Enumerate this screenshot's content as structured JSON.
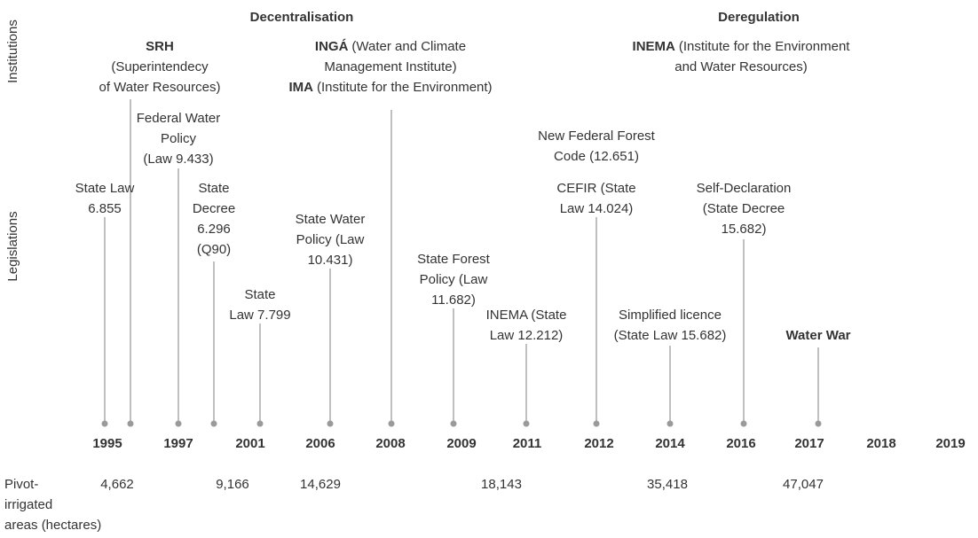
{
  "axis_labels": {
    "institutions": "Institutions",
    "legislations": "Legislations"
  },
  "periods": [
    "Decentralisation",
    "Deregulation"
  ],
  "institutions": [
    {
      "lines": [
        {
          "bold": "SRH"
        },
        {
          "text": "(Superintendecy"
        },
        {
          "text": "of Water Resources)"
        }
      ]
    },
    {
      "lines": [
        {
          "bold": "INGÁ",
          "text": "(Water and Climate"
        },
        {
          "text": "Management Institute)"
        },
        {
          "bold": "IMA",
          "text": "(Institute for the Environment)"
        }
      ]
    },
    {
      "lines": [
        {
          "bold": "INEMA",
          "text": "(Institute for the Environment"
        },
        {
          "text": "and Water Resources)"
        }
      ]
    }
  ],
  "legislations": [
    {
      "lines": [
        {
          "text": "State Law"
        },
        {
          "text": "6.855"
        }
      ]
    },
    {
      "lines": [
        {
          "text": "Federal Water"
        },
        {
          "text": "Policy"
        },
        {
          "text": "(Law 9.433)"
        }
      ]
    },
    {
      "lines": [
        {
          "text": "State"
        },
        {
          "text": "Decree"
        },
        {
          "text": "6.296"
        },
        {
          "text": "(Q90)"
        }
      ]
    },
    {
      "lines": [
        {
          "text": "State"
        },
        {
          "text": "Law 7.799"
        }
      ]
    },
    {
      "lines": [
        {
          "text": "State Water"
        },
        {
          "text": "Policy (Law"
        },
        {
          "text": "10.431)"
        }
      ]
    },
    {
      "lines": [
        {
          "text": "State Forest"
        },
        {
          "text": "Policy (Law"
        },
        {
          "text": "11.682)"
        }
      ]
    },
    {
      "lines": [
        {
          "text": "INEMA (State"
        },
        {
          "text": "Law 12.212)"
        }
      ]
    },
    {
      "lines": [
        {
          "text": "New Federal Forest"
        },
        {
          "text": "Code (12.651)"
        }
      ]
    },
    {
      "lines": [
        {
          "text": "CEFIR (State"
        },
        {
          "text": "Law 14.024)"
        }
      ]
    },
    {
      "lines": [
        {
          "text": "Simplified licence"
        },
        {
          "text": "(State Law 15.682)"
        }
      ]
    },
    {
      "lines": [
        {
          "text": "Self-Declaration"
        },
        {
          "text": "(State Decree"
        },
        {
          "text": "15.682)"
        }
      ]
    },
    {
      "lines": [
        {
          "bold": "Water War"
        }
      ]
    }
  ],
  "years": [
    "1995",
    "1997",
    "2001",
    "2006",
    "2008",
    "2009",
    "2011",
    "2012",
    "2014",
    "2016",
    "2017",
    "2018",
    "2019"
  ],
  "pivot": {
    "label": [
      "Pivot-",
      "irrigated",
      "areas (hectares)"
    ],
    "values": [
      "4,662",
      "9,166",
      "14,629",
      "18,143",
      "35,418",
      "47,047"
    ]
  }
}
